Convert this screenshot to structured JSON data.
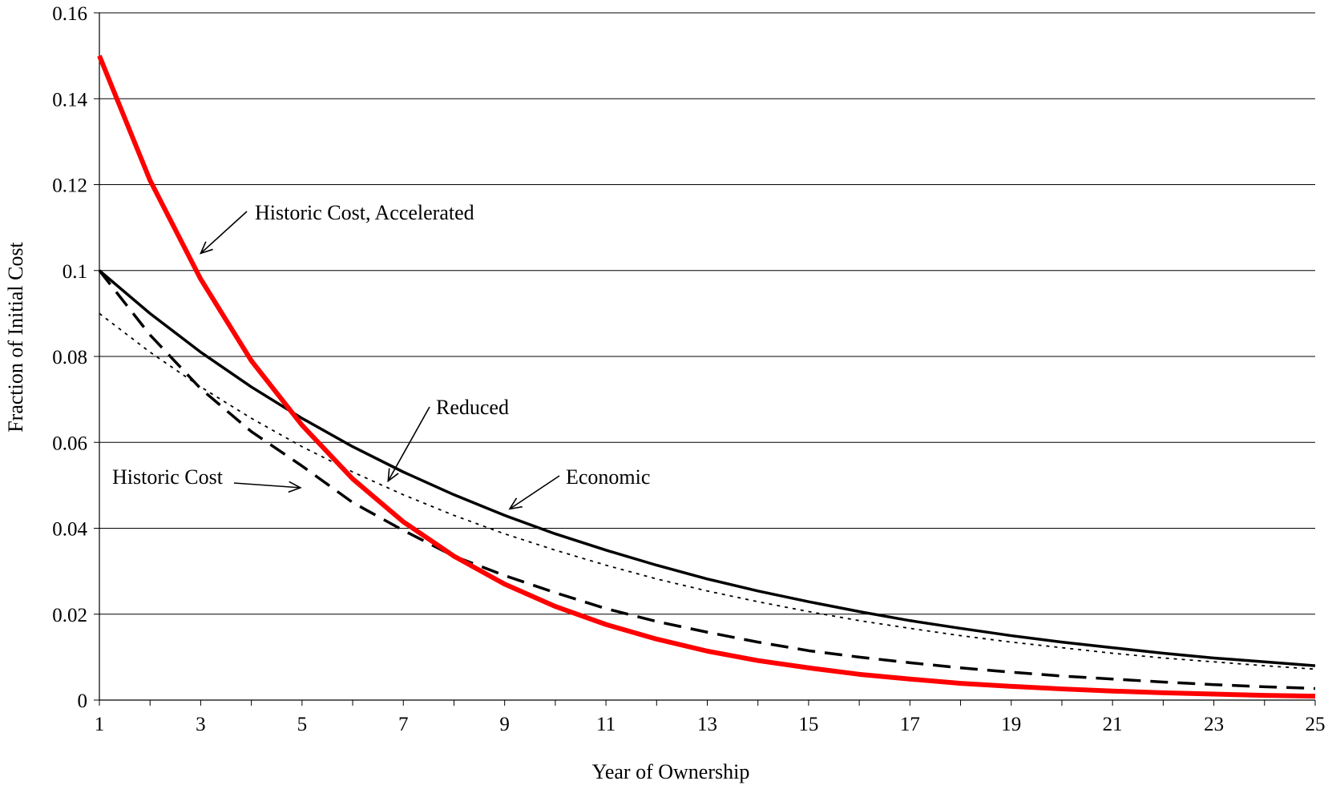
{
  "chart_data": {
    "type": "line",
    "title": "",
    "xlabel": "Year of Ownership",
    "ylabel": "Fraction of Initial Cost",
    "xlim": [
      1,
      25
    ],
    "ylim": [
      0,
      0.16
    ],
    "x_ticks": [
      1,
      3,
      5,
      7,
      9,
      11,
      13,
      15,
      17,
      19,
      21,
      23,
      25
    ],
    "x_tick_labels": [
      "1",
      "3",
      "5",
      "7",
      "9",
      "11",
      "13",
      "15",
      "17",
      "19",
      "21",
      "23",
      "25"
    ],
    "y_ticks": [
      0,
      0.02,
      0.04,
      0.06,
      0.08,
      0.1,
      0.12,
      0.14,
      0.16
    ],
    "y_tick_labels": [
      "0",
      "0.02",
      "0.04",
      "0.06",
      "0.08",
      "0.1",
      "0.12",
      "0.14",
      "0.16"
    ],
    "grid": "horizontal",
    "legend": "none",
    "x": [
      1,
      2,
      3,
      4,
      5,
      6,
      7,
      8,
      9,
      10,
      11,
      12,
      13,
      14,
      15,
      16,
      17,
      18,
      19,
      20,
      21,
      22,
      23,
      24,
      25
    ],
    "series": [
      {
        "key": "historic_cost_accelerated",
        "color": "#ff0000",
        "style": "solid-thick",
        "values": [
          0.15,
          0.121,
          0.098,
          0.079,
          0.064,
          0.0515,
          0.0415,
          0.0335,
          0.027,
          0.0218,
          0.0176,
          0.0142,
          0.0114,
          0.0092,
          0.0075,
          0.006,
          0.0049,
          0.0039,
          0.0032,
          0.0026,
          0.0021,
          0.0017,
          0.0014,
          0.0011,
          0.0009
        ]
      },
      {
        "key": "economic",
        "color": "#000000",
        "style": "solid",
        "values": [
          0.1,
          0.09,
          0.081,
          0.0729,
          0.0656,
          0.059,
          0.0531,
          0.0478,
          0.043,
          0.0387,
          0.0349,
          0.0314,
          0.0282,
          0.0254,
          0.0229,
          0.0206,
          0.0185,
          0.0167,
          0.015,
          0.0135,
          0.0122,
          0.0109,
          0.0098,
          0.0089,
          0.008
        ]
      },
      {
        "key": "historic_cost",
        "color": "#000000",
        "style": "dashed",
        "values": [
          0.1,
          0.085,
          0.0725,
          0.0625,
          0.0545,
          0.046,
          0.0395,
          0.0335,
          0.029,
          0.025,
          0.0213,
          0.0183,
          0.0158,
          0.0135,
          0.0115,
          0.01,
          0.0087,
          0.0075,
          0.0065,
          0.0056,
          0.0049,
          0.0042,
          0.0036,
          0.0031,
          0.0027
        ]
      },
      {
        "key": "reduced",
        "color": "#000000",
        "style": "dotted",
        "values": [
          0.09,
          0.081,
          0.0729,
          0.0656,
          0.059,
          0.0531,
          0.0478,
          0.043,
          0.0387,
          0.0349,
          0.0314,
          0.0282,
          0.0254,
          0.0229,
          0.0206,
          0.0185,
          0.0167,
          0.015,
          0.0135,
          0.0122,
          0.0109,
          0.0098,
          0.0089,
          0.008,
          0.0072
        ]
      }
    ],
    "annotations": [
      {
        "key": "ann_accel",
        "text": "Historic Cost, Accelerated",
        "target": [
          3,
          0.104
        ]
      },
      {
        "key": "ann_reduced",
        "text": "Reduced",
        "target": [
          6.7,
          0.051
        ]
      },
      {
        "key": "ann_economic",
        "text": "Economic",
        "target": [
          9.1,
          0.0445
        ]
      },
      {
        "key": "ann_historic",
        "text": "Historic Cost",
        "target": [
          5.0,
          0.05
        ]
      }
    ]
  }
}
